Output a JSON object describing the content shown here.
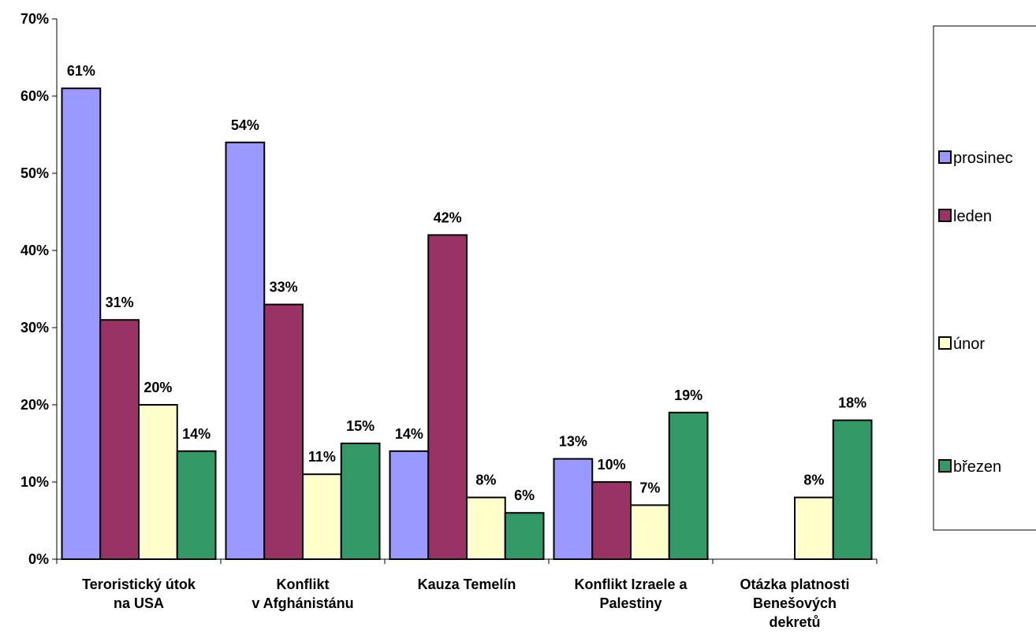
{
  "chart_data": {
    "type": "bar",
    "title": "",
    "xlabel": "",
    "ylabel": "",
    "ylim": [
      0,
      70
    ],
    "y_ticks": [
      "0%",
      "10%",
      "20%",
      "30%",
      "40%",
      "50%",
      "60%",
      "70%"
    ],
    "y_unit": "%",
    "grid": false,
    "legend_position": "right",
    "categories": [
      [
        "Teroristický útok",
        "na USA"
      ],
      [
        "Konflikt",
        "v Afghánistánu"
      ],
      [
        "Kauza Temelín"
      ],
      [
        "Konflikt Izraele a",
        "Palestiny"
      ],
      [
        "Otázka platnosti",
        "Benešových",
        "dekretů"
      ]
    ],
    "series": [
      {
        "name": "prosinec",
        "color": "#9999ff",
        "values": [
          61,
          54,
          14,
          13,
          null
        ]
      },
      {
        "name": "leden",
        "color": "#993366",
        "values": [
          31,
          33,
          42,
          10,
          null
        ]
      },
      {
        "name": "únor",
        "color": "#ffffcc",
        "values": [
          20,
          11,
          8,
          7,
          8
        ]
      },
      {
        "name": "březen",
        "color": "#339966",
        "values": [
          14,
          15,
          6,
          19,
          18
        ]
      }
    ]
  }
}
